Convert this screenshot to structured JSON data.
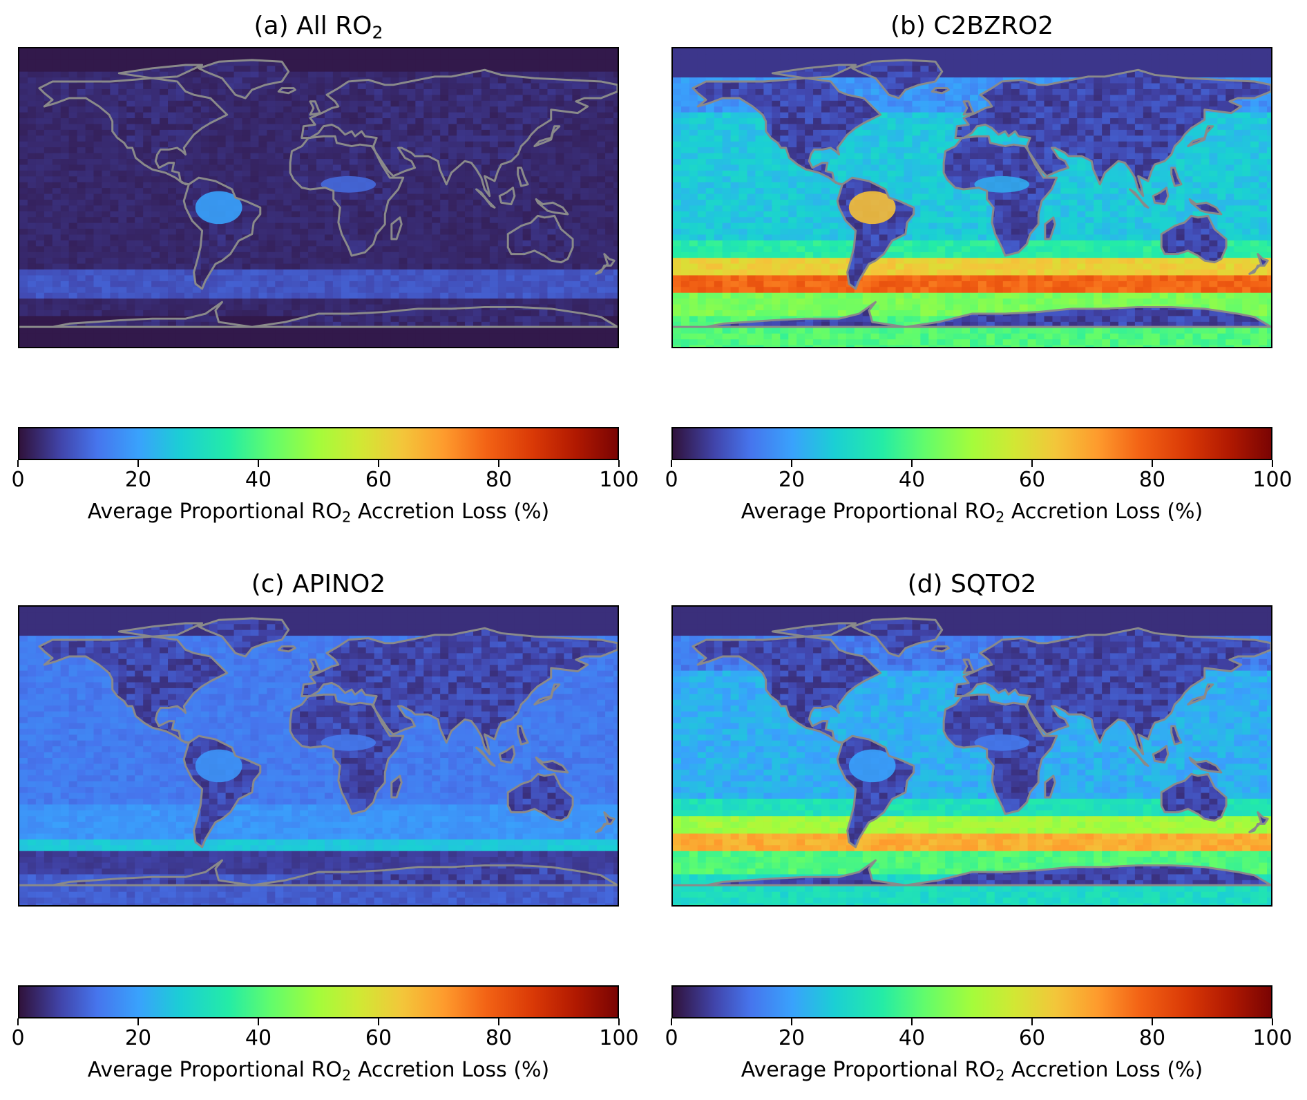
{
  "panels": [
    {
      "id": "a",
      "title_main": "(a) All RO",
      "title_sub": "2",
      "title_rest": ""
    },
    {
      "id": "b",
      "title_main": "(b) C2BZRO2",
      "title_sub": "",
      "title_rest": ""
    },
    {
      "id": "c",
      "title_main": "(c) APINO2",
      "title_sub": "",
      "title_rest": ""
    },
    {
      "id": "d",
      "title_main": "(d) SQTO2",
      "title_sub": "",
      "title_rest": ""
    }
  ],
  "colorbar": {
    "label_pre": "Average Proportional RO",
    "label_sub": "2",
    "label_post": " Accretion Loss (%)",
    "ticks": [
      "0",
      "20",
      "40",
      "60",
      "80",
      "100"
    ],
    "range": [
      0,
      100
    ],
    "colormap": "turbo"
  },
  "map_style": {
    "coastline_color": "#8a8a8a",
    "ocean_colors_hex": {
      "a": "#2a1440",
      "b": "#3aa8f0",
      "c": "#3a50c8",
      "d": "#3a9af0"
    }
  },
  "chart_data": {
    "type": "heatmap",
    "panels": [
      "(a) All RO2",
      "(b) C2BZRO2",
      "(c) APINO2",
      "(d) SQTO2"
    ],
    "colorbar_range": [
      0,
      100
    ],
    "colorbar_ticks": [
      0,
      20,
      40,
      60,
      80,
      100
    ],
    "colorbar_label": "Average Proportional RO2 Accretion Loss (%)",
    "approx_regional_values": {
      "a": {
        "land": 5,
        "ocean": 3,
        "amazon": 20,
        "southern_ocean": 8
      },
      "b": {
        "land": 8,
        "ocean": 30,
        "amazon": 65,
        "southern_ocean": 75
      },
      "c": {
        "land": 8,
        "ocean": 17,
        "amazon": 18,
        "southern_ocean": 25
      },
      "d": {
        "land": 8,
        "ocean": 25,
        "amazon": 20,
        "southern_ocean": 65
      }
    }
  }
}
